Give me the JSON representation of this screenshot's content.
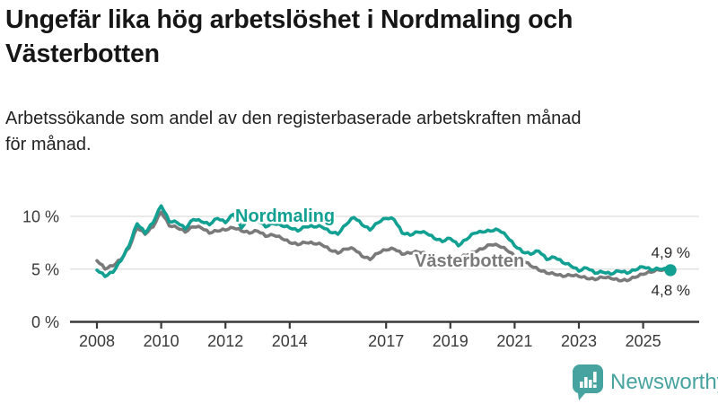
{
  "header": {
    "title": "Ungefär lika hög arbetslöshet i Nordmaling och Västerbotten",
    "title_lines": [
      "Ungefär lika hög arbetslöshet i Nordmaling och",
      "Västerbotten"
    ],
    "subtitle": "Arbetssökande som andel av den registerbaserade arbetskraften månad för månad.",
    "subtitle_lines": [
      "Arbetssökande som andel av den registerbaserade arbetskraften månad",
      "för månad."
    ]
  },
  "chart_data": {
    "type": "line",
    "title": "Ungefär lika hög arbetslöshet i Nordmaling och Västerbotten",
    "subtitle": "Arbetssökande som andel av den registerbaserade arbetskraften månad för månad.",
    "xlabel": "",
    "ylabel": "%",
    "ylim": [
      0,
      11.6
    ],
    "xlim": [
      2007.85,
      2026.6
    ],
    "grid": "horizontal",
    "y_ticks": [
      {
        "v": 10,
        "label": "10 %"
      },
      {
        "v": 5,
        "label": "5 %"
      },
      {
        "v": 0,
        "label": "0 %"
      }
    ],
    "x_ticks": [
      {
        "t": 2008,
        "label": "2008"
      },
      {
        "t": 2010,
        "label": "2010"
      },
      {
        "t": 2012,
        "label": "2012"
      },
      {
        "t": 2014,
        "label": "2014"
      },
      {
        "t": 2017,
        "label": "2017"
      },
      {
        "t": 2019,
        "label": "2019"
      },
      {
        "t": 2021,
        "label": "2021"
      },
      {
        "t": 2023,
        "label": "2023"
      },
      {
        "t": 2025,
        "label": "2025"
      }
    ],
    "series": [
      {
        "name": "Västerbotten",
        "color": "#7a7a7a",
        "end_label": "4,8 %",
        "end_value": 4.8,
        "points": [
          [
            2008.0,
            5.8
          ],
          [
            2008.25,
            5.0
          ],
          [
            2008.5,
            5.3
          ],
          [
            2008.75,
            5.9
          ],
          [
            2009.0,
            7.0
          ],
          [
            2009.25,
            8.9
          ],
          [
            2009.5,
            8.3
          ],
          [
            2009.75,
            9.0
          ],
          [
            2010.0,
            10.4
          ],
          [
            2010.25,
            9.1
          ],
          [
            2010.5,
            8.9
          ],
          [
            2010.75,
            8.5
          ],
          [
            2011.0,
            9.0
          ],
          [
            2011.25,
            8.9
          ],
          [
            2011.5,
            8.4
          ],
          [
            2011.75,
            8.6
          ],
          [
            2012.0,
            8.7
          ],
          [
            2012.25,
            8.9
          ],
          [
            2012.5,
            8.6
          ],
          [
            2012.75,
            8.4
          ],
          [
            2013.0,
            8.6
          ],
          [
            2013.25,
            8.1
          ],
          [
            2013.5,
            8.2
          ],
          [
            2013.75,
            7.9
          ],
          [
            2014.0,
            7.5
          ],
          [
            2014.25,
            7.3
          ],
          [
            2014.5,
            7.5
          ],
          [
            2014.75,
            7.4
          ],
          [
            2015.0,
            7.3
          ],
          [
            2015.25,
            6.8
          ],
          [
            2015.5,
            6.5
          ],
          [
            2015.75,
            6.9
          ],
          [
            2016.0,
            6.9
          ],
          [
            2016.25,
            6.2
          ],
          [
            2016.5,
            5.9
          ],
          [
            2016.75,
            6.5
          ],
          [
            2017.0,
            6.8
          ],
          [
            2017.25,
            6.9
          ],
          [
            2017.5,
            6.4
          ],
          [
            2017.75,
            6.5
          ],
          [
            2018.0,
            6.6
          ],
          [
            2018.25,
            6.4
          ],
          [
            2018.5,
            6.1
          ],
          [
            2018.75,
            6.0
          ],
          [
            2019.0,
            6.2
          ],
          [
            2019.25,
            6.0
          ],
          [
            2019.5,
            6.3
          ],
          [
            2019.75,
            6.6
          ],
          [
            2020.0,
            6.9
          ],
          [
            2020.25,
            7.3
          ],
          [
            2020.5,
            7.2
          ],
          [
            2020.75,
            6.8
          ],
          [
            2021.0,
            6.2
          ],
          [
            2021.25,
            5.8
          ],
          [
            2021.5,
            5.3
          ],
          [
            2021.75,
            4.9
          ],
          [
            2022.0,
            4.6
          ],
          [
            2022.25,
            4.5
          ],
          [
            2022.5,
            4.3
          ],
          [
            2022.75,
            4.4
          ],
          [
            2023.0,
            4.3
          ],
          [
            2023.25,
            4.1
          ],
          [
            2023.5,
            4.0
          ],
          [
            2023.75,
            4.2
          ],
          [
            2024.0,
            4.1
          ],
          [
            2024.25,
            3.9
          ],
          [
            2024.5,
            3.9
          ],
          [
            2024.75,
            4.2
          ],
          [
            2025.0,
            4.5
          ],
          [
            2025.25,
            4.7
          ],
          [
            2025.5,
            4.9
          ],
          [
            2025.85,
            4.8
          ]
        ]
      },
      {
        "name": "Nordmaling",
        "color": "#12a092",
        "end_label": "4,9 %",
        "end_value": 4.9,
        "points": [
          [
            2008.0,
            4.9
          ],
          [
            2008.25,
            4.3
          ],
          [
            2008.5,
            4.7
          ],
          [
            2008.75,
            5.8
          ],
          [
            2009.0,
            7.2
          ],
          [
            2009.25,
            9.3
          ],
          [
            2009.5,
            8.4
          ],
          [
            2009.75,
            9.4
          ],
          [
            2010.0,
            11.0
          ],
          [
            2010.25,
            9.5
          ],
          [
            2010.5,
            9.4
          ],
          [
            2010.75,
            8.8
          ],
          [
            2011.0,
            9.7
          ],
          [
            2011.25,
            9.5
          ],
          [
            2011.5,
            9.2
          ],
          [
            2011.75,
            9.8
          ],
          [
            2012.0,
            9.4
          ],
          [
            2012.25,
            10.2
          ],
          [
            2012.5,
            8.9
          ],
          [
            2012.75,
            9.9
          ],
          [
            2013.0,
            9.6
          ],
          [
            2013.25,
            9.0
          ],
          [
            2013.5,
            9.3
          ],
          [
            2013.75,
            9.1
          ],
          [
            2014.0,
            8.9
          ],
          [
            2014.25,
            8.6
          ],
          [
            2014.5,
            9.0
          ],
          [
            2014.75,
            9.0
          ],
          [
            2015.0,
            9.0
          ],
          [
            2015.25,
            8.5
          ],
          [
            2015.5,
            8.3
          ],
          [
            2015.75,
            9.2
          ],
          [
            2016.0,
            9.9
          ],
          [
            2016.25,
            9.2
          ],
          [
            2016.5,
            8.7
          ],
          [
            2016.75,
            9.4
          ],
          [
            2017.0,
            9.8
          ],
          [
            2017.25,
            9.7
          ],
          [
            2017.5,
            8.4
          ],
          [
            2017.75,
            8.2
          ],
          [
            2018.0,
            8.5
          ],
          [
            2018.25,
            8.4
          ],
          [
            2018.5,
            7.9
          ],
          [
            2018.75,
            7.6
          ],
          [
            2019.0,
            7.9
          ],
          [
            2019.25,
            7.2
          ],
          [
            2019.5,
            7.8
          ],
          [
            2019.75,
            8.4
          ],
          [
            2020.0,
            8.5
          ],
          [
            2020.25,
            8.6
          ],
          [
            2020.5,
            8.7
          ],
          [
            2020.75,
            8.1
          ],
          [
            2021.0,
            7.2
          ],
          [
            2021.25,
            6.6
          ],
          [
            2021.5,
            6.4
          ],
          [
            2021.75,
            6.7
          ],
          [
            2022.0,
            5.9
          ],
          [
            2022.25,
            6.1
          ],
          [
            2022.5,
            5.6
          ],
          [
            2022.75,
            5.3
          ],
          [
            2023.0,
            4.8
          ],
          [
            2023.25,
            5.1
          ],
          [
            2023.5,
            4.6
          ],
          [
            2023.75,
            4.7
          ],
          [
            2024.0,
            4.5
          ],
          [
            2024.25,
            4.8
          ],
          [
            2024.5,
            4.6
          ],
          [
            2024.75,
            4.9
          ],
          [
            2025.0,
            5.2
          ],
          [
            2025.25,
            4.9
          ],
          [
            2025.5,
            5.0
          ],
          [
            2025.85,
            4.9
          ]
        ]
      }
    ],
    "legend_position": "inline-labels"
  },
  "colors": {
    "nordmaling": "#12a092",
    "vasterbotten": "#7a7a7a",
    "gridline": "#dedede",
    "axis": "#3a3a3a",
    "brand_teal": "#47a3a0"
  },
  "icons": {
    "logo": "newsworthy-chart-bubble-icon"
  },
  "footer": {
    "brand": "Newsworthy"
  }
}
